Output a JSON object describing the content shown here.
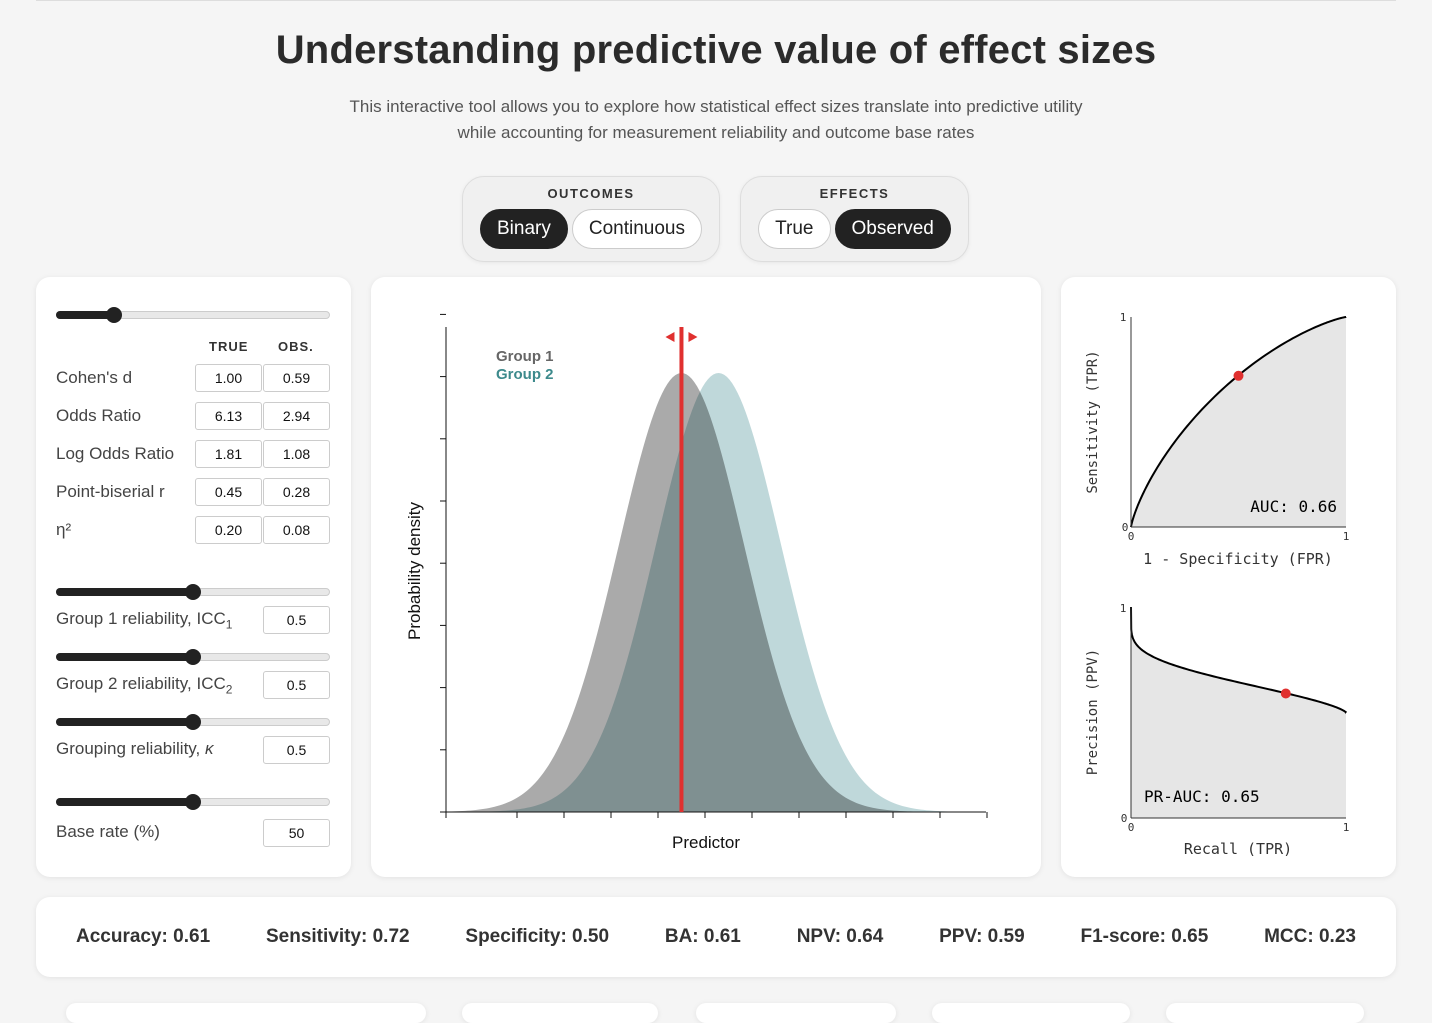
{
  "title": "Understanding predictive value of effect sizes",
  "subtitle_line1": "This interactive tool allows you to explore how statistical effect sizes translate into predictive utility",
  "subtitle_line2": "while accounting for measurement reliability and outcome base rates",
  "outcomes": {
    "label": "OUTCOMES",
    "options": [
      "Binary",
      "Continuous"
    ],
    "selected": "Binary"
  },
  "effects": {
    "label": "EFFECTS",
    "options": [
      "True",
      "Observed"
    ],
    "selected": "Observed"
  },
  "effect_table": {
    "col_true": "TRUE",
    "col_obs": "OBS.",
    "slider_value_fraction": 0.21,
    "rows": [
      {
        "label": "Cohen's d",
        "true": "1.00",
        "obs": "0.59"
      },
      {
        "label": "Odds Ratio",
        "true": "6.13",
        "obs": "2.94"
      },
      {
        "label": "Log Odds Ratio",
        "true": "1.81",
        "obs": "1.08"
      },
      {
        "label": "Point-biserial r",
        "true": "0.45",
        "obs": "0.28"
      },
      {
        "label": "η²",
        "true": "0.20",
        "obs": "0.08"
      }
    ]
  },
  "reliability": {
    "group1": {
      "label": "Group 1 reliability, ICC",
      "sub": "1",
      "value": "0.5",
      "fraction": 0.5
    },
    "group2": {
      "label": "Group 2 reliability, ICC",
      "sub": "2",
      "value": "0.5",
      "fraction": 0.5
    },
    "grouping": {
      "label": "Grouping reliability, ",
      "italic": "κ",
      "value": "0.5",
      "fraction": 0.5
    },
    "base_rate": {
      "label": "Base rate (%)",
      "value": "50",
      "fraction": 0.5
    }
  },
  "density_plot": {
    "group1_label": "Group 1",
    "group2_label": "Group 2",
    "xlabel": "Predictor",
    "ylabel": "Probability density",
    "colors": {
      "group1": "#aaaaaa",
      "group2": "#bcd6d8",
      "group2_text": "#3d8a8c",
      "threshold": "#e0302f"
    },
    "cohens_d": 0.59,
    "threshold": 0
  },
  "roc": {
    "xlabel": "1 - Specificity (FPR)",
    "ylabel": "Sensitivity (TPR)",
    "auc_text": "AUC: 0.66",
    "point": {
      "fpr": 0.5,
      "tpr": 0.72
    },
    "tick0": "0",
    "tick1": "1"
  },
  "pr": {
    "xlabel": "Recall (TPR)",
    "ylabel": "Precision (PPV)",
    "auc_text": "PR-AUC: 0.65",
    "point": {
      "recall": 0.72,
      "precision": 0.59
    },
    "tick0": "0",
    "tick1": "1"
  },
  "metrics": [
    "Accuracy: 0.61",
    "Sensitivity: 0.72",
    "Specificity: 0.50",
    "BA: 0.61",
    "NPV: 0.64",
    "PPV: 0.59",
    "F1-score: 0.65",
    "MCC: 0.23"
  ]
}
